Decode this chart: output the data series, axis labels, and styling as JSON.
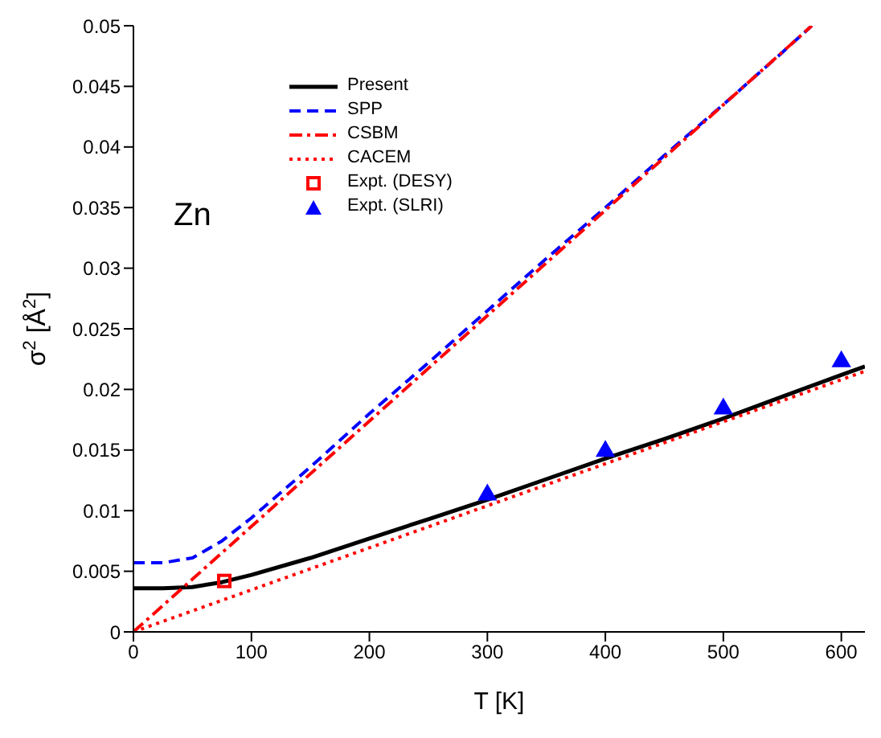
{
  "chart_data": {
    "type": "line",
    "xlabel": "T [K]",
    "ylabel": "σ$^{2}$ [Å$^{2}$]",
    "annotations": [
      "Zn"
    ],
    "xlim": [
      0,
      620
    ],
    "xticks": [
      0,
      100,
      200,
      300,
      400,
      500,
      600
    ],
    "ylim": [
      0,
      0.05
    ],
    "yticks": [
      0,
      0.005,
      0.01,
      0.015,
      0.02,
      0.025,
      0.03,
      0.035,
      0.04,
      0.045,
      0.05
    ],
    "grid": false,
    "legend": "top left",
    "series": [
      {
        "name": "Present",
        "color": "#000000",
        "line_style": "solid",
        "marker": "none",
        "x": [
          0,
          25,
          50,
          75,
          100,
          150,
          200,
          250,
          300,
          350,
          400,
          450,
          500,
          550,
          600,
          620
        ],
        "values": [
          0.0036,
          0.0036,
          0.0037,
          0.0041,
          0.0047,
          0.0061,
          0.0077,
          0.0093,
          0.0109,
          0.0126,
          0.0143,
          0.0159,
          0.0176,
          0.0194,
          0.0212,
          0.0219
        ]
      },
      {
        "name": "SPP",
        "color": "#0000ff",
        "line_style": "dashed",
        "marker": "none",
        "x": [
          0,
          25,
          50,
          75,
          100,
          150,
          200,
          250,
          300,
          350,
          400,
          450,
          500,
          550,
          575
        ],
        "values": [
          0.0057,
          0.0057,
          0.0061,
          0.0075,
          0.0094,
          0.0136,
          0.018,
          0.0222,
          0.0265,
          0.0308,
          0.035,
          0.0393,
          0.0435,
          0.0478,
          0.05
        ]
      },
      {
        "name": "CSBM",
        "color": "#ff0000",
        "line_style": "dashdot",
        "marker": "none",
        "x": [
          0,
          575
        ],
        "values": [
          0,
          0.05
        ]
      },
      {
        "name": "CACEM",
        "color": "#ff0000",
        "line_style": "dotted",
        "marker": "none",
        "x": [
          0,
          620
        ],
        "values": [
          0,
          0.0215
        ]
      },
      {
        "name": "Expt. (DESY)",
        "type": "scatter",
        "color": "#ff0000",
        "marker": "square",
        "x": [
          77
        ],
        "values": [
          0.0042
        ]
      },
      {
        "name": "Expt. (SLRI)",
        "type": "scatter",
        "color": "#0000ff",
        "marker": "triangle",
        "x": [
          300,
          400,
          500,
          600
        ],
        "values": [
          0.0113,
          0.0149,
          0.0184,
          0.0223
        ]
      }
    ]
  }
}
